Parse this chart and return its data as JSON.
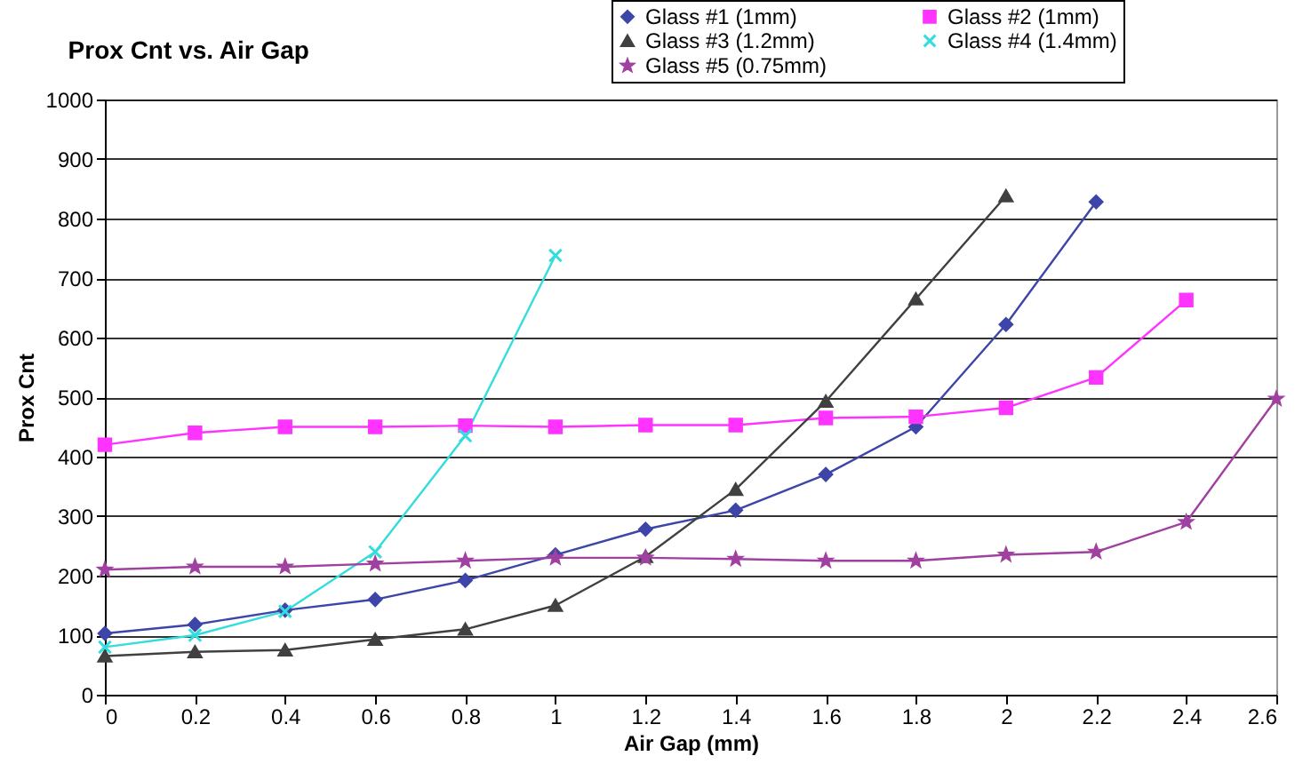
{
  "chart_data": {
    "type": "line",
    "title": "Prox Cnt vs. Air Gap",
    "xlabel": "Air Gap (mm)",
    "ylabel": "Prox Cnt",
    "x": [
      0,
      0.2,
      0.4,
      0.6,
      0.8,
      1,
      1.2,
      1.4,
      1.6,
      1.8,
      2,
      2.2,
      2.4,
      2.6
    ],
    "series": [
      {
        "name": "Glass #1 (1mm)",
        "color": "#3d45a8",
        "marker": "diamond",
        "values": [
          103,
          118,
          142,
          160,
          192,
          235,
          278,
          310,
          370,
          450,
          622,
          828,
          null,
          null
        ]
      },
      {
        "name": "Glass #2 (1mm)",
        "color": "#ff33ff",
        "marker": "square",
        "values": [
          420,
          440,
          450,
          450,
          452,
          450,
          453,
          453,
          465,
          467,
          482,
          533,
          663,
          null
        ]
      },
      {
        "name": "Glass #3 (1.2mm)",
        "color": "#404040",
        "marker": "triangle",
        "values": [
          65,
          72,
          75,
          93,
          110,
          150,
          232,
          345,
          493,
          665,
          838,
          null,
          null,
          null
        ]
      },
      {
        "name": "Glass #4 (1.4mm)",
        "color": "#33dddd",
        "marker": "cross",
        "values": [
          80,
          100,
          140,
          240,
          435,
          738,
          null,
          null,
          null,
          null,
          null,
          null,
          null,
          null
        ]
      },
      {
        "name": "Glass #5 (0.75mm)",
        "color": "#a040a0",
        "marker": "star",
        "values": [
          210,
          215,
          215,
          220,
          225,
          230,
          230,
          228,
          225,
          225,
          235,
          240,
          290,
          497
        ]
      }
    ],
    "xlim": [
      0,
      2.6
    ],
    "xticks": [
      0,
      0.2,
      0.4,
      0.6,
      0.8,
      1,
      1.2,
      1.4,
      1.6,
      1.8,
      2,
      2.2,
      2.4,
      2.6
    ],
    "ylim": [
      0,
      1000
    ],
    "yticks": [
      0,
      100,
      200,
      300,
      400,
      500,
      600,
      700,
      800,
      900,
      1000
    ],
    "grid": "y",
    "legend": "top right",
    "line_style": "solid"
  }
}
